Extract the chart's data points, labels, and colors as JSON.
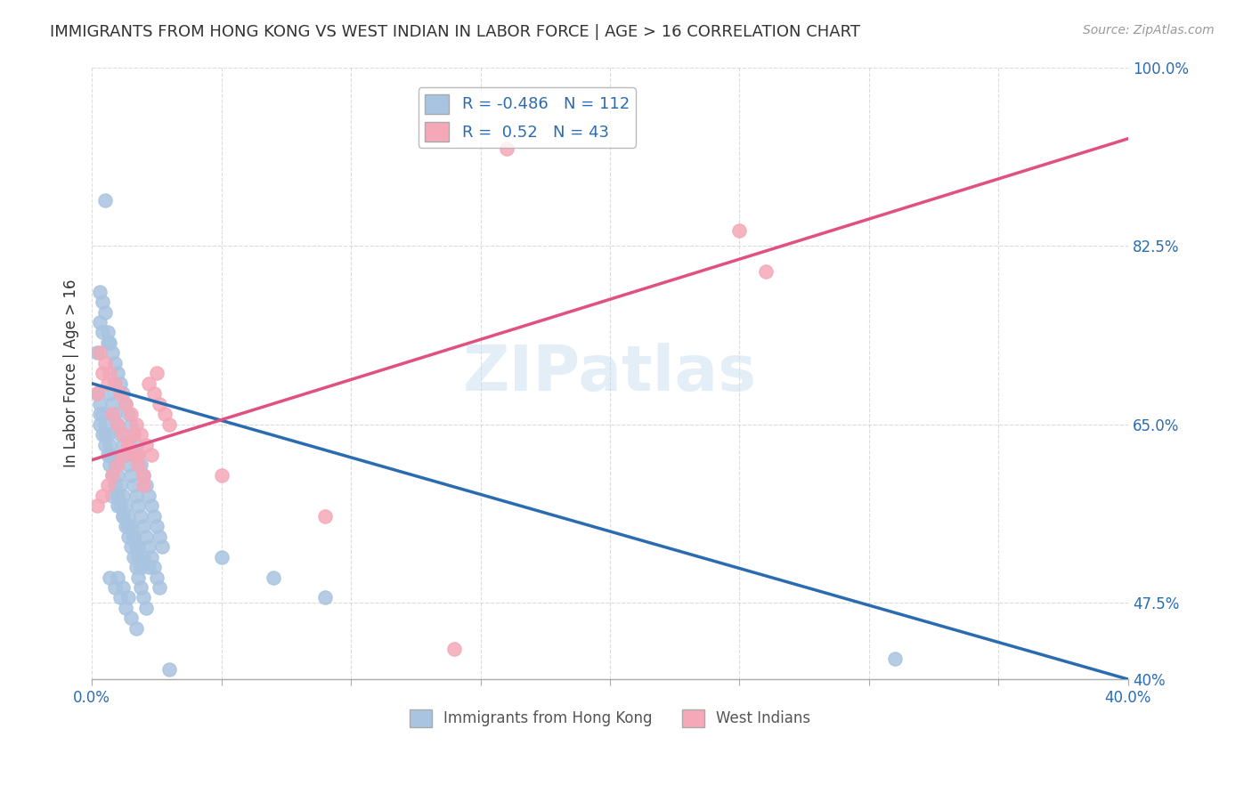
{
  "title": "IMMIGRANTS FROM HONG KONG VS WEST INDIAN IN LABOR FORCE | AGE > 16 CORRELATION CHART",
  "source": "Source: ZipAtlas.com",
  "xlabel": "",
  "ylabel": "In Labor Force | Age > 16",
  "xlim": [
    0.0,
    0.4
  ],
  "ylim": [
    0.4,
    1.0
  ],
  "xticks": [
    0.0,
    0.05,
    0.1,
    0.15,
    0.2,
    0.25,
    0.3,
    0.35,
    0.4
  ],
  "xticklabels": [
    "0.0%",
    "",
    "",
    "",
    "",
    "",
    "",
    "",
    "40.0%"
  ],
  "yticks": [
    0.4,
    0.475,
    0.65,
    0.825,
    1.0
  ],
  "yticklabels": [
    "40%",
    "47.5%",
    "65.0%",
    "82.5%",
    "100.0%"
  ],
  "hk_R": -0.486,
  "hk_N": 112,
  "wi_R": 0.52,
  "wi_N": 43,
  "hk_color": "#a8c4e0",
  "wi_color": "#f4a8b8",
  "hk_line_color": "#2b6cb0",
  "wi_line_color": "#e05080",
  "hk_scatter_x": [
    0.005,
    0.002,
    0.003,
    0.004,
    0.006,
    0.007,
    0.008,
    0.009,
    0.01,
    0.011,
    0.012,
    0.013,
    0.014,
    0.015,
    0.016,
    0.017,
    0.018,
    0.019,
    0.02,
    0.021,
    0.022,
    0.023,
    0.024,
    0.025,
    0.026,
    0.003,
    0.004,
    0.005,
    0.006,
    0.007,
    0.008,
    0.009,
    0.01,
    0.011,
    0.012,
    0.013,
    0.014,
    0.015,
    0.016,
    0.017,
    0.018,
    0.019,
    0.02,
    0.021,
    0.022,
    0.023,
    0.024,
    0.025,
    0.026,
    0.027,
    0.003,
    0.004,
    0.005,
    0.006,
    0.007,
    0.008,
    0.009,
    0.01,
    0.011,
    0.012,
    0.013,
    0.014,
    0.015,
    0.016,
    0.017,
    0.018,
    0.019,
    0.02,
    0.021,
    0.003,
    0.004,
    0.005,
    0.006,
    0.007,
    0.008,
    0.009,
    0.01,
    0.011,
    0.012,
    0.013,
    0.014,
    0.015,
    0.016,
    0.017,
    0.018,
    0.019,
    0.008,
    0.01,
    0.012,
    0.014,
    0.016,
    0.018,
    0.02,
    0.022,
    0.007,
    0.009,
    0.011,
    0.013,
    0.015,
    0.017,
    0.01,
    0.012,
    0.014,
    0.03,
    0.31,
    0.05,
    0.07,
    0.09,
    0.002,
    0.003,
    0.005,
    0.007
  ],
  "hk_scatter_y": [
    0.87,
    0.72,
    0.75,
    0.74,
    0.73,
    0.68,
    0.67,
    0.66,
    0.65,
    0.64,
    0.63,
    0.62,
    0.61,
    0.6,
    0.59,
    0.58,
    0.57,
    0.56,
    0.55,
    0.54,
    0.53,
    0.52,
    0.51,
    0.5,
    0.49,
    0.78,
    0.77,
    0.76,
    0.74,
    0.73,
    0.72,
    0.71,
    0.7,
    0.69,
    0.68,
    0.67,
    0.66,
    0.65,
    0.64,
    0.63,
    0.62,
    0.61,
    0.6,
    0.59,
    0.58,
    0.57,
    0.56,
    0.55,
    0.54,
    0.53,
    0.65,
    0.64,
    0.63,
    0.62,
    0.61,
    0.6,
    0.59,
    0.58,
    0.57,
    0.56,
    0.55,
    0.54,
    0.53,
    0.52,
    0.51,
    0.5,
    0.49,
    0.48,
    0.47,
    0.67,
    0.66,
    0.65,
    0.64,
    0.63,
    0.62,
    0.61,
    0.6,
    0.59,
    0.58,
    0.57,
    0.56,
    0.55,
    0.54,
    0.53,
    0.52,
    0.51,
    0.58,
    0.57,
    0.56,
    0.55,
    0.54,
    0.53,
    0.52,
    0.51,
    0.5,
    0.49,
    0.48,
    0.47,
    0.46,
    0.45,
    0.5,
    0.49,
    0.48,
    0.41,
    0.42,
    0.52,
    0.5,
    0.48,
    0.68,
    0.66,
    0.64,
    0.62
  ],
  "wi_scatter_x": [
    0.002,
    0.004,
    0.006,
    0.008,
    0.01,
    0.012,
    0.014,
    0.016,
    0.018,
    0.02,
    0.022,
    0.024,
    0.026,
    0.028,
    0.03,
    0.003,
    0.005,
    0.007,
    0.009,
    0.011,
    0.013,
    0.015,
    0.017,
    0.019,
    0.021,
    0.023,
    0.25,
    0.26,
    0.02,
    0.018,
    0.016,
    0.014,
    0.012,
    0.01,
    0.008,
    0.006,
    0.004,
    0.002,
    0.025,
    0.14,
    0.16,
    0.05,
    0.09
  ],
  "wi_scatter_y": [
    0.68,
    0.7,
    0.69,
    0.66,
    0.65,
    0.64,
    0.63,
    0.62,
    0.61,
    0.6,
    0.69,
    0.68,
    0.67,
    0.66,
    0.65,
    0.72,
    0.71,
    0.7,
    0.69,
    0.68,
    0.67,
    0.66,
    0.65,
    0.64,
    0.63,
    0.62,
    0.84,
    0.8,
    0.59,
    0.62,
    0.64,
    0.63,
    0.62,
    0.61,
    0.6,
    0.59,
    0.58,
    0.57,
    0.7,
    0.43,
    0.92,
    0.6,
    0.56
  ],
  "hk_line_x": [
    0.0,
    0.4
  ],
  "hk_line_y": [
    0.69,
    0.4
  ],
  "wi_line_x": [
    0.0,
    0.4
  ],
  "wi_line_y": [
    0.615,
    0.93
  ],
  "watermark": "ZIPatlas",
  "background_color": "#ffffff",
  "grid_color": "#cccccc"
}
